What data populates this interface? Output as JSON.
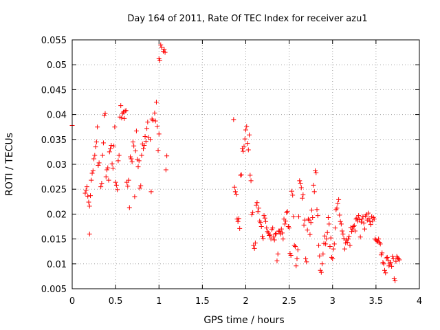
{
  "chart_data": {
    "type": "scatter",
    "title": "Day 164 of 2011, Rate Of TEC Index for receiver azu1",
    "xlabel": "GPS time / hours",
    "ylabel": "ROTI / TECUs",
    "xlim": [
      0,
      4
    ],
    "ylim": [
      0.005,
      0.055
    ],
    "grid": true,
    "xticks": [
      0,
      0.5,
      1,
      1.5,
      2,
      2.5,
      3,
      3.5,
      4
    ],
    "xtick_labels": [
      "0",
      "0.5",
      "1",
      "1.5",
      "2",
      "2.5",
      "3",
      "3.5",
      "4"
    ],
    "yticks": [
      0.005,
      0.01,
      0.015,
      0.02,
      0.025,
      0.03,
      0.035,
      0.04,
      0.045,
      0.05,
      0.055
    ],
    "ytick_labels": [
      "0.005",
      "0.01",
      "0.015",
      "0.02",
      "0.025",
      "0.03",
      "0.035",
      "0.04",
      "0.045",
      "0.05",
      "0.055"
    ],
    "marker": "+",
    "color": "#ff0000",
    "series": [
      {
        "name": "azu1",
        "points": [
          [
            0.0,
            0.0378
          ],
          [
            0.15,
            0.0242
          ],
          [
            0.16,
            0.0248
          ],
          [
            0.17,
            0.0255
          ],
          [
            0.18,
            0.0236
          ],
          [
            0.19,
            0.0224
          ],
          [
            0.2,
            0.0216
          ],
          [
            0.2,
            0.016
          ],
          [
            0.21,
            0.0237
          ],
          [
            0.22,
            0.0268
          ],
          [
            0.23,
            0.0282
          ],
          [
            0.24,
            0.0287
          ],
          [
            0.25,
            0.0311
          ],
          [
            0.26,
            0.0318
          ],
          [
            0.27,
            0.0335
          ],
          [
            0.28,
            0.0345
          ],
          [
            0.29,
            0.0375
          ],
          [
            0.3,
            0.0298
          ],
          [
            0.31,
            0.0303
          ],
          [
            0.33,
            0.0255
          ],
          [
            0.34,
            0.0262
          ],
          [
            0.35,
            0.0318
          ],
          [
            0.36,
            0.0343
          ],
          [
            0.37,
            0.0398
          ],
          [
            0.38,
            0.0402
          ],
          [
            0.39,
            0.0275
          ],
          [
            0.4,
            0.0289
          ],
          [
            0.41,
            0.0293
          ],
          [
            0.42,
            0.0268
          ],
          [
            0.43,
            0.0325
          ],
          [
            0.44,
            0.0331
          ],
          [
            0.45,
            0.0338
          ],
          [
            0.46,
            0.0301
          ],
          [
            0.47,
            0.0292
          ],
          [
            0.48,
            0.0337
          ],
          [
            0.49,
            0.0375
          ],
          [
            0.5,
            0.0264
          ],
          [
            0.51,
            0.0258
          ],
          [
            0.52,
            0.0249
          ],
          [
            0.53,
            0.0307
          ],
          [
            0.54,
            0.0318
          ],
          [
            0.55,
            0.0395
          ],
          [
            0.56,
            0.0418
          ],
          [
            0.57,
            0.0393
          ],
          [
            0.58,
            0.0402
          ],
          [
            0.59,
            0.0405
          ],
          [
            0.6,
            0.0392
          ],
          [
            0.61,
            0.0407
          ],
          [
            0.62,
            0.0408
          ],
          [
            0.63,
            0.0264
          ],
          [
            0.64,
            0.0256
          ],
          [
            0.65,
            0.0268
          ],
          [
            0.66,
            0.0213
          ],
          [
            0.67,
            0.0315
          ],
          [
            0.68,
            0.0311
          ],
          [
            0.69,
            0.0305
          ],
          [
            0.7,
            0.0345
          ],
          [
            0.71,
            0.0337
          ],
          [
            0.72,
            0.0235
          ],
          [
            0.73,
            0.0327
          ],
          [
            0.74,
            0.0367
          ],
          [
            0.75,
            0.031
          ],
          [
            0.76,
            0.0295
          ],
          [
            0.77,
            0.0307
          ],
          [
            0.78,
            0.0252
          ],
          [
            0.79,
            0.0257
          ],
          [
            0.8,
            0.0318
          ],
          [
            0.81,
            0.0341
          ],
          [
            0.82,
            0.0331
          ],
          [
            0.83,
            0.0338
          ],
          [
            0.84,
            0.0356
          ],
          [
            0.85,
            0.0346
          ],
          [
            0.86,
            0.0372
          ],
          [
            0.87,
            0.0385
          ],
          [
            0.88,
            0.0354
          ],
          [
            0.9,
            0.035
          ],
          [
            0.91,
            0.0245
          ],
          [
            0.92,
            0.0391
          ],
          [
            0.93,
            0.0388
          ],
          [
            0.95,
            0.0403
          ],
          [
            0.96,
            0.0387
          ],
          [
            0.97,
            0.0425
          ],
          [
            0.98,
            0.0376
          ],
          [
            0.99,
            0.0328
          ],
          [
            1.0,
            0.0361
          ],
          [
            1.0,
            0.0512
          ],
          [
            1.01,
            0.0509
          ],
          [
            1.02,
            0.054
          ],
          [
            1.03,
            0.0535
          ],
          [
            1.05,
            0.0527
          ],
          [
            1.06,
            0.0531
          ],
          [
            1.07,
            0.0525
          ],
          [
            1.08,
            0.0289
          ],
          [
            1.09,
            0.0317
          ],
          [
            1.86,
            0.039
          ],
          [
            1.87,
            0.0254
          ],
          [
            1.88,
            0.0245
          ],
          [
            1.89,
            0.024
          ],
          [
            1.9,
            0.019
          ],
          [
            1.91,
            0.0185
          ],
          [
            1.92,
            0.0191
          ],
          [
            1.93,
            0.0171
          ],
          [
            1.94,
            0.0278
          ],
          [
            1.95,
            0.0279
          ],
          [
            1.96,
            0.0331
          ],
          [
            1.97,
            0.0326
          ],
          [
            1.98,
            0.0336
          ],
          [
            1.99,
            0.0351
          ],
          [
            2.0,
            0.0369
          ],
          [
            2.01,
            0.0376
          ],
          [
            2.02,
            0.0342
          ],
          [
            2.03,
            0.0329
          ],
          [
            2.04,
            0.0359
          ],
          [
            2.05,
            0.0278
          ],
          [
            2.06,
            0.0267
          ],
          [
            2.07,
            0.0199
          ],
          [
            2.08,
            0.0203
          ],
          [
            2.09,
            0.0137
          ],
          [
            2.1,
            0.0131
          ],
          [
            2.11,
            0.0142
          ],
          [
            2.12,
            0.0218
          ],
          [
            2.13,
            0.0223
          ],
          [
            2.14,
            0.0205
          ],
          [
            2.15,
            0.0212
          ],
          [
            2.16,
            0.0186
          ],
          [
            2.17,
            0.0183
          ],
          [
            2.18,
            0.0175
          ],
          [
            2.19,
            0.0155
          ],
          [
            2.2,
            0.0151
          ],
          [
            2.21,
            0.0197
          ],
          [
            2.22,
            0.0192
          ],
          [
            2.23,
            0.0185
          ],
          [
            2.24,
            0.0172
          ],
          [
            2.25,
            0.0165
          ],
          [
            2.26,
            0.0162
          ],
          [
            2.27,
            0.0157
          ],
          [
            2.28,
            0.0158
          ],
          [
            2.29,
            0.015
          ],
          [
            2.3,
            0.0169
          ],
          [
            2.31,
            0.0172
          ],
          [
            2.32,
            0.0154
          ],
          [
            2.33,
            0.0148
          ],
          [
            2.34,
            0.016
          ],
          [
            2.35,
            0.0161
          ],
          [
            2.36,
            0.0106
          ],
          [
            2.37,
            0.012
          ],
          [
            2.38,
            0.0166
          ],
          [
            2.39,
            0.0165
          ],
          [
            2.4,
            0.016
          ],
          [
            2.41,
            0.017
          ],
          [
            2.42,
            0.0162
          ],
          [
            2.43,
            0.015
          ],
          [
            2.44,
            0.019
          ],
          [
            2.45,
            0.018
          ],
          [
            2.46,
            0.0186
          ],
          [
            2.47,
            0.0203
          ],
          [
            2.48,
            0.0205
          ],
          [
            2.49,
            0.0175
          ],
          [
            2.5,
            0.0172
          ],
          [
            2.51,
            0.0121
          ],
          [
            2.52,
            0.0117
          ],
          [
            2.53,
            0.0246
          ],
          [
            2.54,
            0.0238
          ],
          [
            2.55,
            0.0195
          ],
          [
            2.56,
            0.0137
          ],
          [
            2.57,
            0.0135
          ],
          [
            2.58,
            0.0096
          ],
          [
            2.59,
            0.011
          ],
          [
            2.6,
            0.0128
          ],
          [
            2.61,
            0.0195
          ],
          [
            2.62,
            0.0267
          ],
          [
            2.63,
            0.0262
          ],
          [
            2.64,
            0.0253
          ],
          [
            2.65,
            0.0232
          ],
          [
            2.66,
            0.0239
          ],
          [
            2.67,
            0.0178
          ],
          [
            2.68,
            0.0188
          ],
          [
            2.69,
            0.011
          ],
          [
            2.7,
            0.0104
          ],
          [
            2.71,
            0.0168
          ],
          [
            2.72,
            0.019
          ],
          [
            2.73,
            0.0188
          ],
          [
            2.74,
            0.0159
          ],
          [
            2.75,
            0.0183
          ],
          [
            2.76,
            0.0208
          ],
          [
            2.77,
            0.0193
          ],
          [
            2.78,
            0.0258
          ],
          [
            2.79,
            0.0245
          ],
          [
            2.8,
            0.0287
          ],
          [
            2.81,
            0.0283
          ],
          [
            2.82,
            0.0209
          ],
          [
            2.83,
            0.0197
          ],
          [
            2.84,
            0.0137
          ],
          [
            2.85,
            0.0116
          ],
          [
            2.86,
            0.0087
          ],
          [
            2.87,
            0.0083
          ],
          [
            2.88,
            0.01
          ],
          [
            2.89,
            0.012
          ],
          [
            2.9,
            0.0141
          ],
          [
            2.91,
            0.0156
          ],
          [
            2.92,
            0.014
          ],
          [
            2.93,
            0.015
          ],
          [
            2.94,
            0.0163
          ],
          [
            2.95,
            0.0193
          ],
          [
            2.96,
            0.018
          ],
          [
            2.97,
            0.0135
          ],
          [
            2.98,
            0.0152
          ],
          [
            2.99,
            0.0113
          ],
          [
            3.0,
            0.011
          ],
          [
            3.01,
            0.013
          ],
          [
            3.02,
            0.014
          ],
          [
            3.03,
            0.0172
          ],
          [
            3.04,
            0.0209
          ],
          [
            3.05,
            0.0212
          ],
          [
            3.06,
            0.0222
          ],
          [
            3.07,
            0.0229
          ],
          [
            3.08,
            0.0198
          ],
          [
            3.09,
            0.0185
          ],
          [
            3.1,
            0.018
          ],
          [
            3.11,
            0.0166
          ],
          [
            3.12,
            0.016
          ],
          [
            3.13,
            0.0151
          ],
          [
            3.14,
            0.013
          ],
          [
            3.15,
            0.0142
          ],
          [
            3.16,
            0.0148
          ],
          [
            3.17,
            0.0143
          ],
          [
            3.18,
            0.015
          ],
          [
            3.19,
            0.0155
          ],
          [
            3.2,
            0.0137
          ],
          [
            3.21,
            0.0173
          ],
          [
            3.22,
            0.0165
          ],
          [
            3.23,
            0.017
          ],
          [
            3.24,
            0.0175
          ],
          [
            3.25,
            0.0177
          ],
          [
            3.26,
            0.0166
          ],
          [
            3.27,
            0.019
          ],
          [
            3.28,
            0.0192
          ],
          [
            3.29,
            0.0186
          ],
          [
            3.3,
            0.0197
          ],
          [
            3.31,
            0.0189
          ],
          [
            3.32,
            0.0154
          ],
          [
            3.33,
            0.0184
          ],
          [
            3.34,
            0.019
          ],
          [
            3.35,
            0.0195
          ],
          [
            3.36,
            0.0182
          ],
          [
            3.37,
            0.017
          ],
          [
            3.38,
            0.0196
          ],
          [
            3.39,
            0.0199
          ],
          [
            3.4,
            0.0188
          ],
          [
            3.41,
            0.0202
          ],
          [
            3.42,
            0.0191
          ],
          [
            3.43,
            0.0185
          ],
          [
            3.44,
            0.0179
          ],
          [
            3.45,
            0.0195
          ],
          [
            3.46,
            0.0186
          ],
          [
            3.47,
            0.0193
          ],
          [
            3.48,
            0.019
          ],
          [
            3.49,
            0.015
          ],
          [
            3.5,
            0.0148
          ],
          [
            3.51,
            0.0146
          ],
          [
            3.52,
            0.0145
          ],
          [
            3.53,
            0.015
          ],
          [
            3.54,
            0.0143
          ],
          [
            3.55,
            0.014
          ],
          [
            3.56,
            0.0118
          ],
          [
            3.57,
            0.0122
          ],
          [
            3.58,
            0.0103
          ],
          [
            3.59,
            0.01
          ],
          [
            3.6,
            0.0087
          ],
          [
            3.61,
            0.0082
          ],
          [
            3.62,
            0.0112
          ],
          [
            3.63,
            0.0113
          ],
          [
            3.64,
            0.0107
          ],
          [
            3.65,
            0.0096
          ],
          [
            3.66,
            0.01
          ],
          [
            3.67,
            0.0103
          ],
          [
            3.68,
            0.0095
          ],
          [
            3.69,
            0.0115
          ],
          [
            3.7,
            0.011
          ],
          [
            3.71,
            0.007
          ],
          [
            3.72,
            0.0066
          ],
          [
            3.73,
            0.0105
          ],
          [
            3.74,
            0.0115
          ],
          [
            3.75,
            0.0112
          ],
          [
            3.76,
            0.011
          ],
          [
            3.77,
            0.0108
          ]
        ]
      }
    ]
  }
}
